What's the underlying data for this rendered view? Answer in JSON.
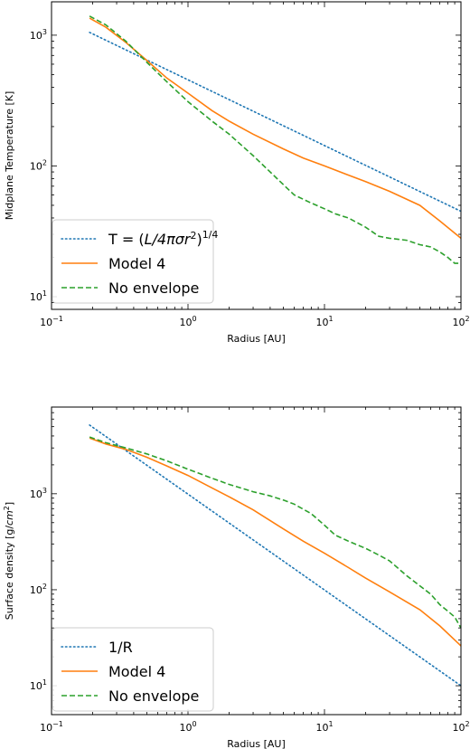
{
  "chart_data": [
    {
      "type": "line",
      "xlabel": "Radius [AU]",
      "ylabel": "Midplane Temperature [K]",
      "xscale": "log",
      "yscale": "log",
      "xlim": [
        0.1,
        100
      ],
      "ylim": [
        8,
        1800
      ],
      "xticks": [
        {
          "v": 0.1,
          "base": "10",
          "exp": "−1"
        },
        {
          "v": 1,
          "base": "10",
          "exp": "0"
        },
        {
          "v": 10,
          "base": "10",
          "exp": "1"
        },
        {
          "v": 100,
          "base": "10",
          "exp": "2"
        }
      ],
      "yticks": [
        {
          "v": 10,
          "base": "10",
          "exp": "1"
        },
        {
          "v": 100,
          "base": "10",
          "exp": "2"
        },
        {
          "v": 1000,
          "base": "10",
          "exp": "3"
        }
      ],
      "legend": "lower-left",
      "series": [
        {
          "name": "T = (L/4πσr²)^1/4",
          "label_parts": {
            "prefix": "T = (",
            "italic": "L/4πσr",
            "sup1": "2",
            "suffix": ")",
            "sup2": "1/4"
          },
          "color": "#1f77b4",
          "style": "dotted",
          "x": [
            0.19,
            100
          ],
          "y": [
            1050,
            45
          ]
        },
        {
          "name": "Model 4",
          "color": "#ff7f0e",
          "style": "solid",
          "x": [
            0.19,
            0.25,
            0.35,
            0.5,
            0.7,
            1.0,
            1.5,
            2,
            3,
            5,
            7,
            10,
            15,
            20,
            30,
            50,
            70,
            100
          ],
          "y": [
            1350,
            1150,
            880,
            640,
            470,
            360,
            265,
            220,
            175,
            135,
            115,
            100,
            85,
            76,
            64,
            50,
            38,
            28
          ]
        },
        {
          "name": "No envelope",
          "color": "#2ca02c",
          "style": "dashed",
          "x": [
            0.19,
            0.25,
            0.35,
            0.5,
            0.7,
            1.0,
            1.5,
            2,
            3,
            4,
            5,
            6,
            8,
            10,
            12,
            15,
            20,
            25,
            30,
            40,
            50,
            60,
            70,
            80,
            90,
            100
          ],
          "y": [
            1400,
            1200,
            900,
            620,
            440,
            310,
            220,
            175,
            120,
            90,
            72,
            60,
            52,
            47,
            43,
            40,
            34,
            29,
            28,
            27,
            25,
            24,
            22,
            20,
            18,
            18
          ]
        }
      ]
    },
    {
      "type": "line",
      "xlabel": "Radius [AU]",
      "ylabel": "Surface density [g/cm²]",
      "ylabel_parts": {
        "prefix": "Surface density [g/",
        "italic": "cm",
        "sup": "2",
        "suffix": "]"
      },
      "xscale": "log",
      "yscale": "log",
      "xlim": [
        0.1,
        100
      ],
      "ylim": [
        5,
        8000
      ],
      "xticks": [
        {
          "v": 0.1,
          "base": "10",
          "exp": "−1"
        },
        {
          "v": 1,
          "base": "10",
          "exp": "0"
        },
        {
          "v": 10,
          "base": "10",
          "exp": "1"
        },
        {
          "v": 100,
          "base": "10",
          "exp": "2"
        }
      ],
      "yticks": [
        {
          "v": 10,
          "base": "10",
          "exp": "1"
        },
        {
          "v": 100,
          "base": "10",
          "exp": "2"
        },
        {
          "v": 1000,
          "base": "10",
          "exp": "3"
        }
      ],
      "legend": "lower-left",
      "series": [
        {
          "name": "1/R",
          "color": "#1f77b4",
          "style": "dotted",
          "x": [
            0.19,
            100
          ],
          "y": [
            5200,
            10
          ]
        },
        {
          "name": "Model 4",
          "color": "#ff7f0e",
          "style": "solid",
          "x": [
            0.19,
            0.25,
            0.35,
            0.5,
            0.7,
            1.0,
            1.5,
            2,
            3,
            5,
            7,
            10,
            15,
            20,
            30,
            50,
            70,
            100
          ],
          "y": [
            3800,
            3300,
            2900,
            2400,
            1950,
            1550,
            1150,
            930,
            680,
            430,
            320,
            240,
            170,
            132,
            95,
            62,
            42,
            26
          ]
        },
        {
          "name": "No envelope",
          "color": "#2ca02c",
          "style": "dashed",
          "x": [
            0.19,
            0.25,
            0.35,
            0.5,
            0.7,
            1.0,
            1.5,
            2,
            3,
            4,
            5,
            6,
            8,
            10,
            12,
            15,
            20,
            25,
            30,
            40,
            50,
            60,
            70,
            80,
            90,
            100
          ],
          "y": [
            3900,
            3400,
            3000,
            2600,
            2200,
            1800,
            1450,
            1250,
            1050,
            950,
            860,
            780,
            620,
            470,
            370,
            320,
            270,
            230,
            200,
            140,
            110,
            90,
            70,
            60,
            52,
            40
          ]
        }
      ]
    }
  ]
}
